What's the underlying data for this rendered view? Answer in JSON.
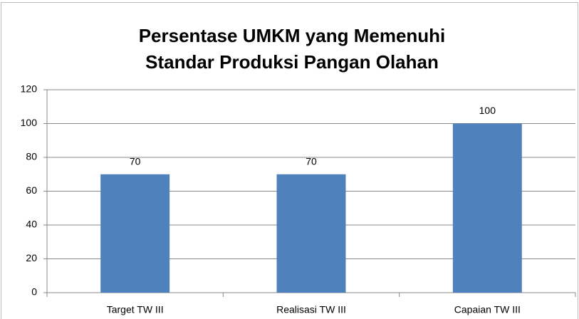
{
  "chart_data": {
    "type": "bar",
    "title": "Persentase UMKM yang Memenuhi Standar Produksi Pangan Olahan",
    "categories": [
      "Target TW III",
      "Realisasi TW III",
      "Capaian TW III"
    ],
    "values": [
      70,
      70,
      100
    ],
    "color": "#4f81bd",
    "ylim": [
      0,
      120
    ],
    "yticks": [
      0,
      20,
      40,
      60,
      80,
      100,
      120
    ],
    "grid": true
  }
}
